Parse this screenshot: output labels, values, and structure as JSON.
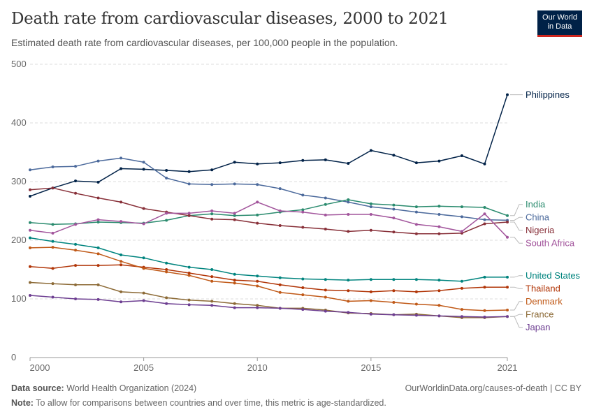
{
  "header": {
    "title": "Death rate from cardiovascular diseases, 2000 to 2021",
    "subtitle": "Estimated death rate from cardiovascular diseases, per 100,000 people in the population.",
    "logo_line1": "Our World",
    "logo_line2": "in Data"
  },
  "footer": {
    "source_label": "Data source:",
    "source_text": "World Health Organization (2024)",
    "url_text": "OurWorldinData.org/causes-of-death | CC BY",
    "note_label": "Note:",
    "note_text": "To allow for comparisons between countries and over time, this metric is age-standardized."
  },
  "chart_data": {
    "type": "line",
    "x": [
      2000,
      2001,
      2002,
      2003,
      2004,
      2005,
      2006,
      2007,
      2008,
      2009,
      2010,
      2011,
      2012,
      2013,
      2014,
      2015,
      2016,
      2017,
      2018,
      2019,
      2020,
      2021
    ],
    "xticks": [
      2000,
      2005,
      2010,
      2015,
      2021
    ],
    "xtick_labels": [
      "2000",
      "2005",
      "2010",
      "2015",
      "2021"
    ],
    "yticks": [
      0,
      100,
      200,
      300,
      400,
      500
    ],
    "ytick_labels": [
      "0",
      "100",
      "200",
      "300",
      "400",
      "500"
    ],
    "ylim": [
      0,
      500
    ],
    "xlim": [
      2000,
      2021
    ],
    "grid": "horizontal dashed",
    "legend": "right end labels",
    "series": [
      {
        "name": "Philippines",
        "color": "#002147",
        "values": [
          275,
          289,
          301,
          299,
          322,
          321,
          319,
          317,
          320,
          333,
          330,
          332,
          336,
          337,
          331,
          353,
          345,
          332,
          335,
          344,
          330,
          448
        ]
      },
      {
        "name": "China",
        "color": "#4c6a9c",
        "values": [
          320,
          325,
          326,
          335,
          340,
          333,
          306,
          296,
          295,
          296,
          295,
          288,
          277,
          272,
          265,
          257,
          253,
          248,
          244,
          240,
          235,
          234
        ]
      },
      {
        "name": "India",
        "color": "#2a8b6e",
        "values": [
          230,
          227,
          228,
          231,
          230,
          229,
          234,
          242,
          245,
          242,
          243,
          248,
          252,
          261,
          269,
          262,
          260,
          257,
          258,
          257,
          256,
          242
        ]
      },
      {
        "name": "Nigeria",
        "color": "#883039",
        "values": [
          286,
          289,
          280,
          272,
          265,
          254,
          248,
          242,
          236,
          235,
          229,
          225,
          222,
          219,
          215,
          217,
          214,
          211,
          211,
          212,
          228,
          231
        ]
      },
      {
        "name": "South Africa",
        "color": "#a2559c",
        "values": [
          217,
          212,
          227,
          235,
          232,
          228,
          246,
          246,
          250,
          246,
          265,
          250,
          248,
          243,
          244,
          244,
          238,
          227,
          223,
          215,
          245,
          205
        ]
      },
      {
        "name": "United States",
        "color": "#00847e",
        "values": [
          204,
          198,
          193,
          187,
          175,
          170,
          161,
          154,
          150,
          142,
          139,
          136,
          134,
          133,
          132,
          133,
          133,
          133,
          132,
          130,
          137,
          137
        ]
      },
      {
        "name": "Thailand",
        "color": "#b13507",
        "values": [
          155,
          152,
          157,
          157,
          158,
          154,
          150,
          144,
          138,
          132,
          130,
          124,
          119,
          115,
          114,
          112,
          114,
          112,
          114,
          118,
          120,
          120
        ]
      },
      {
        "name": "Denmark",
        "color": "#c05917",
        "values": [
          187,
          188,
          183,
          177,
          164,
          152,
          146,
          140,
          130,
          127,
          122,
          111,
          107,
          103,
          96,
          97,
          94,
          91,
          89,
          82,
          80,
          81
        ]
      },
      {
        "name": "France",
        "color": "#8c6a36",
        "values": [
          128,
          126,
          124,
          124,
          112,
          110,
          102,
          98,
          96,
          92,
          89,
          84,
          84,
          81,
          76,
          75,
          73,
          74,
          71,
          68,
          68,
          70
        ]
      },
      {
        "name": "Japan",
        "color": "#6d3e91",
        "values": [
          106,
          103,
          100,
          99,
          95,
          97,
          92,
          90,
          89,
          85,
          85,
          84,
          82,
          79,
          77,
          74,
          73,
          72,
          71,
          70,
          69,
          70
        ]
      }
    ]
  }
}
